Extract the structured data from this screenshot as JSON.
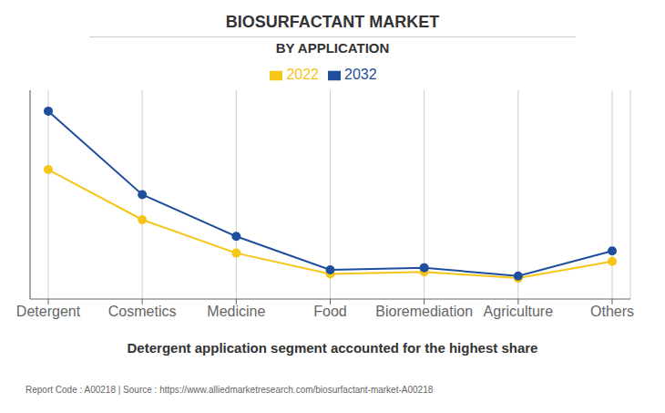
{
  "chart_data": {
    "type": "line",
    "title": "BIOSURFACTANT MARKET",
    "subtitle": "BY APPLICATION",
    "categories": [
      "Detergent",
      "Cosmetics",
      "Medicine",
      "Food",
      "Bioremediation",
      "Agriculture",
      "Others"
    ],
    "series": [
      {
        "name": "2022",
        "color": "#F5C518",
        "values": [
          62,
          38,
          22,
          12,
          13,
          10,
          18
        ]
      },
      {
        "name": "2032",
        "color": "#1F4E9C",
        "values": [
          90,
          50,
          30,
          14,
          15,
          11,
          23
        ]
      }
    ],
    "ylim": [
      0,
      100
    ],
    "yticks": [],
    "grid": true,
    "legend": "top",
    "tick_labels": "x",
    "marker": "circle",
    "annotations": [
      "Detergent application segment accounted for the highest share",
      "Report Code : A00218  |  Source : https://www.alliedmarketresearch.com/biosurfactant-market-A00218"
    ]
  }
}
